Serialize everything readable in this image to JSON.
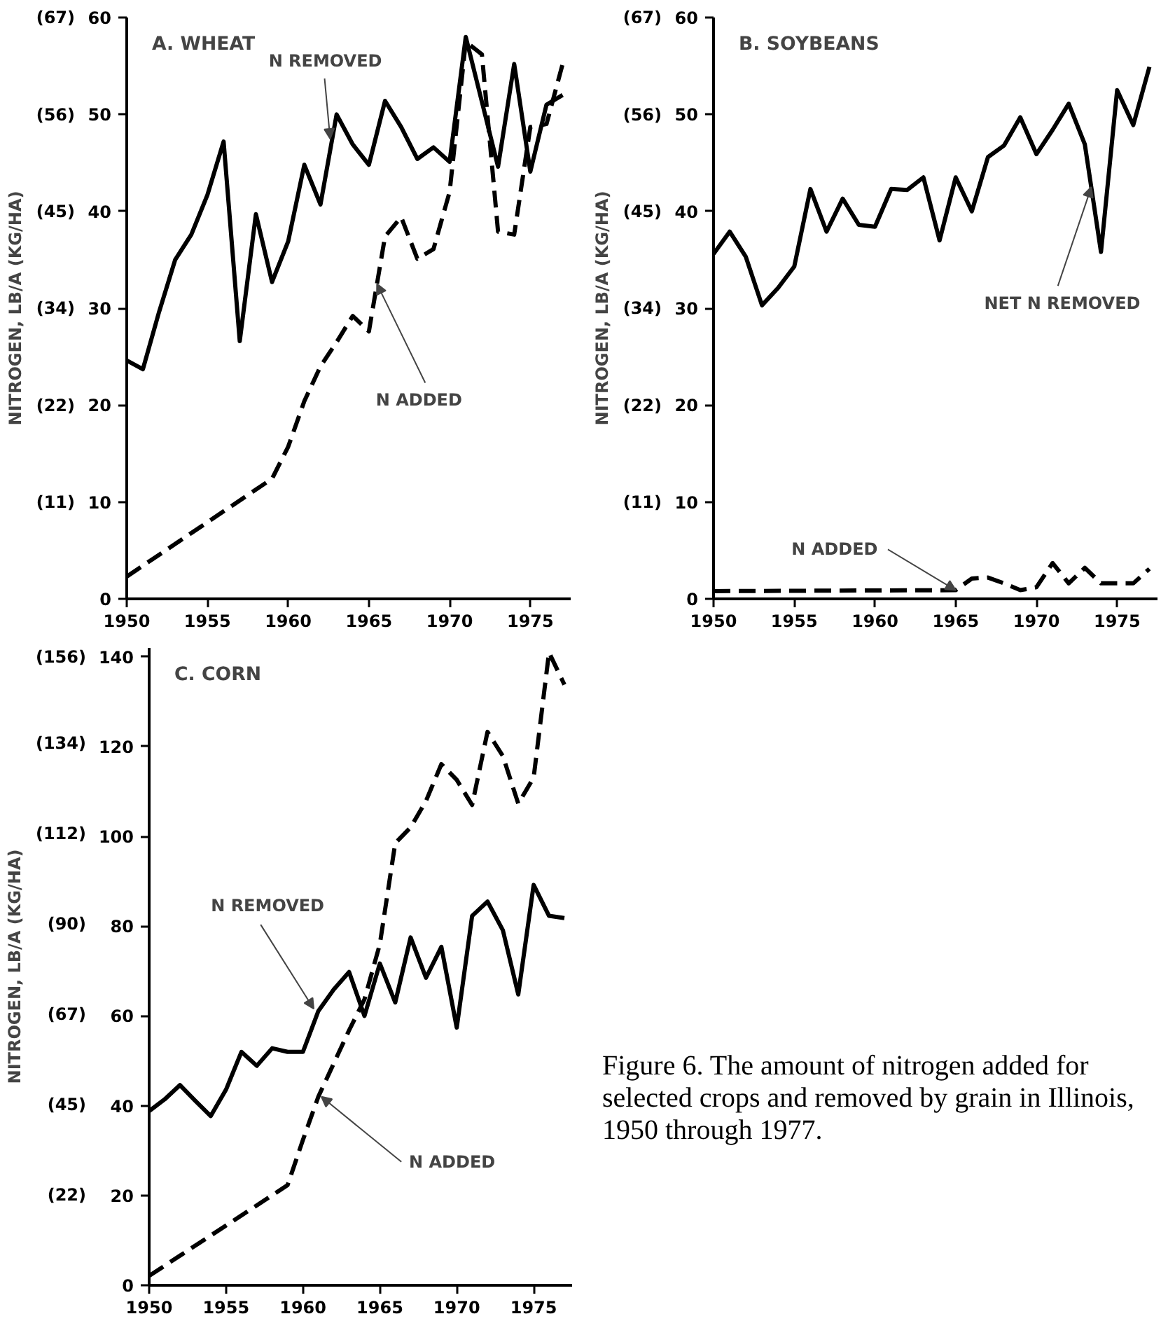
{
  "chart_data": [
    {
      "type": "line",
      "title": "A. WHEAT",
      "y2label": "NITROGEN, LB/A (KG/HA)",
      "xlim": [
        1950,
        1977.5
      ],
      "ylim": [
        0,
        60
      ],
      "xticks": [
        1950,
        1955,
        1960,
        1965,
        1970,
        1975
      ],
      "yticks": [
        0,
        10,
        20,
        30,
        40,
        50,
        60
      ],
      "y2lim": [
        0,
        67.25
      ],
      "y2ticks": [
        {
          "value": 11.2,
          "label": "(11)"
        },
        {
          "value": 22.4,
          "label": "(22)"
        },
        {
          "value": 33.6,
          "label": "(34)"
        },
        {
          "value": 44.8,
          "label": "(45)"
        },
        {
          "value": 56.0,
          "label": "(56)"
        },
        {
          "value": 67.25,
          "label": "(67)"
        }
      ],
      "grid": false,
      "marker": "none",
      "series": [
        {
          "color": "#000000",
          "line_style": "solid",
          "x": [
            1950,
            1951,
            1952,
            1953,
            1954,
            1955,
            1956,
            1957,
            1958,
            1959,
            1960,
            1961,
            1962,
            1963,
            1964,
            1965,
            1966,
            1967,
            1968,
            1969,
            1970,
            1971,
            1972,
            1973,
            1974,
            1975,
            1976,
            1977
          ],
          "values": [
            24.6,
            23.7,
            29.6,
            35,
            37.6,
            41.7,
            47.2,
            26.6,
            39.7,
            32.7,
            36.9,
            44.8,
            40.7,
            50,
            46.9,
            44.8,
            51.4,
            48.7,
            45.4,
            46.6,
            45.1,
            58,
            51.3,
            44.6,
            55.2,
            44.1,
            51,
            52
          ]
        },
        {
          "color": "#000000",
          "line_style": "dashed",
          "x": [
            1950,
            1959,
            1960,
            1961,
            1962,
            1963,
            1964,
            1965,
            1966,
            1967,
            1968,
            1969,
            1970,
            1971,
            1972,
            1973,
            1974,
            1975,
            1976,
            1977
          ],
          "values": [
            2.3,
            12.4,
            15.7,
            20.4,
            24,
            26.5,
            29.2,
            27.6,
            37.4,
            39.4,
            35.1,
            36.1,
            42,
            57.5,
            56.2,
            37.9,
            37.6,
            48.7,
            49,
            55.2
          ]
        }
      ],
      "annotations": [
        {
          "text": "N REMOVED",
          "x": 1962.6,
          "y": 47.5
        },
        {
          "text": "N ADDED",
          "x": 1965.5,
          "y": 32.5
        }
      ]
    },
    {
      "type": "line",
      "title": "B. SOYBEANS",
      "y2label": "NITROGEN, LB/A (KG/HA)",
      "xlim": [
        1950,
        1977.5
      ],
      "ylim": [
        0,
        60
      ],
      "xticks": [
        1950,
        1955,
        1960,
        1965,
        1970,
        1975
      ],
      "yticks": [
        0,
        10,
        20,
        30,
        40,
        50,
        60
      ],
      "y2lim": [
        0,
        67.25
      ],
      "y2ticks": [
        {
          "value": 11.2,
          "label": "(11)"
        },
        {
          "value": 22.4,
          "label": "(22)"
        },
        {
          "value": 33.6,
          "label": "(34)"
        },
        {
          "value": 44.8,
          "label": "(45)"
        },
        {
          "value": 56.0,
          "label": "(56)"
        },
        {
          "value": 67.25,
          "label": "(67)"
        }
      ],
      "grid": false,
      "marker": "none",
      "series": [
        {
          "color": "#000000",
          "line_style": "solid",
          "x": [
            1950,
            1951,
            1952,
            1953,
            1954,
            1955,
            1956,
            1957,
            1958,
            1959,
            1960,
            1961,
            1962,
            1963,
            1964,
            1965,
            1966,
            1967,
            1968,
            1969,
            1970,
            1971,
            1972,
            1973,
            1974,
            1975,
            1976,
            1977
          ],
          "values": [
            35.6,
            37.9,
            35.3,
            30.3,
            32.1,
            34.3,
            42.3,
            37.9,
            41.3,
            38.6,
            38.4,
            42.3,
            42.2,
            43.5,
            37,
            43.5,
            40,
            45.6,
            46.8,
            49.7,
            45.9,
            48.4,
            51.1,
            46.9,
            35.8,
            52.5,
            48.9,
            54.9
          ]
        },
        {
          "color": "#000000",
          "line_style": "dashed",
          "x": [
            1950,
            1965,
            1966,
            1967,
            1968,
            1969,
            1970,
            1971,
            1972,
            1973,
            1974,
            1975,
            1976,
            1977
          ],
          "values": [
            0.8,
            0.9,
            2.1,
            2.2,
            1.6,
            0.9,
            1.2,
            3.7,
            1.6,
            3.2,
            1.6,
            1.6,
            1.6,
            3.1
          ]
        }
      ],
      "annotations": [
        {
          "text": "NET N REMOVED",
          "x": 1973.4,
          "y": 42.5
        },
        {
          "text": "N ADDED",
          "x": 1965,
          "y": 0.9
        }
      ]
    },
    {
      "type": "line",
      "title": "C. CORN",
      "y2label": "NITROGEN, LB/A (KG/HA)",
      "xlim": [
        1950,
        1977.5
      ],
      "ylim": [
        0,
        142
      ],
      "xticks": [
        1950,
        1955,
        1960,
        1965,
        1970,
        1975
      ],
      "yticks": [
        0,
        20,
        40,
        60,
        80,
        100,
        120,
        140
      ],
      "y2lim": [
        0,
        158.2
      ],
      "y2ticks": [
        {
          "value": 22.4,
          "label": "(22)"
        },
        {
          "value": 44.8,
          "label": "(45)"
        },
        {
          "value": 67.25,
          "label": "(67)"
        },
        {
          "value": 89.7,
          "label": "(90)"
        },
        {
          "value": 112.1,
          "label": "(112)"
        },
        {
          "value": 134.5,
          "label": "(134)"
        },
        {
          "value": 156,
          "label": "(156)"
        }
      ],
      "grid": false,
      "marker": "none",
      "series": [
        {
          "color": "#000000",
          "line_style": "solid",
          "x": [
            1950,
            1951,
            1952,
            1953,
            1954,
            1955,
            1956,
            1957,
            1958,
            1959,
            1960,
            1961,
            1962,
            1963,
            1964,
            1965,
            1966,
            1967,
            1968,
            1969,
            1970,
            1971,
            1972,
            1973,
            1974,
            1975,
            1976,
            1977
          ],
          "values": [
            38.8,
            41.4,
            44.6,
            41.1,
            37.7,
            43.6,
            52,
            48.9,
            52.8,
            52,
            52,
            61.1,
            65.9,
            69.8,
            60,
            71.7,
            63,
            77.5,
            68.5,
            75.4,
            57.4,
            82.3,
            85.5,
            79.1,
            64.8,
            89.2,
            82.3,
            81.8
          ]
        },
        {
          "color": "#000000",
          "line_style": "dashed",
          "x": [
            1950,
            1959,
            1960,
            1961,
            1962,
            1963,
            1964,
            1965,
            1966,
            1967,
            1968,
            1969,
            1970,
            1971,
            1972,
            1973,
            1974,
            1975,
            1976,
            1977
          ],
          "values": [
            2.1,
            22.3,
            32.4,
            42,
            49.4,
            56.8,
            63.7,
            76,
            98.5,
            102,
            107.9,
            116.1,
            112.6,
            107,
            123.3,
            117.9,
            107.3,
            113.1,
            141,
            133.8
          ]
        }
      ],
      "annotations": [
        {
          "text": "N REMOVED",
          "x": 1960.7,
          "y": 61.6
        },
        {
          "text": "N ADDED",
          "x": 1961.2,
          "y": 42
        },
        "Figure 6. The amount of nitrogen added for selected crops and removed by grain in Illinois, 1950 through 1977."
      ]
    }
  ]
}
